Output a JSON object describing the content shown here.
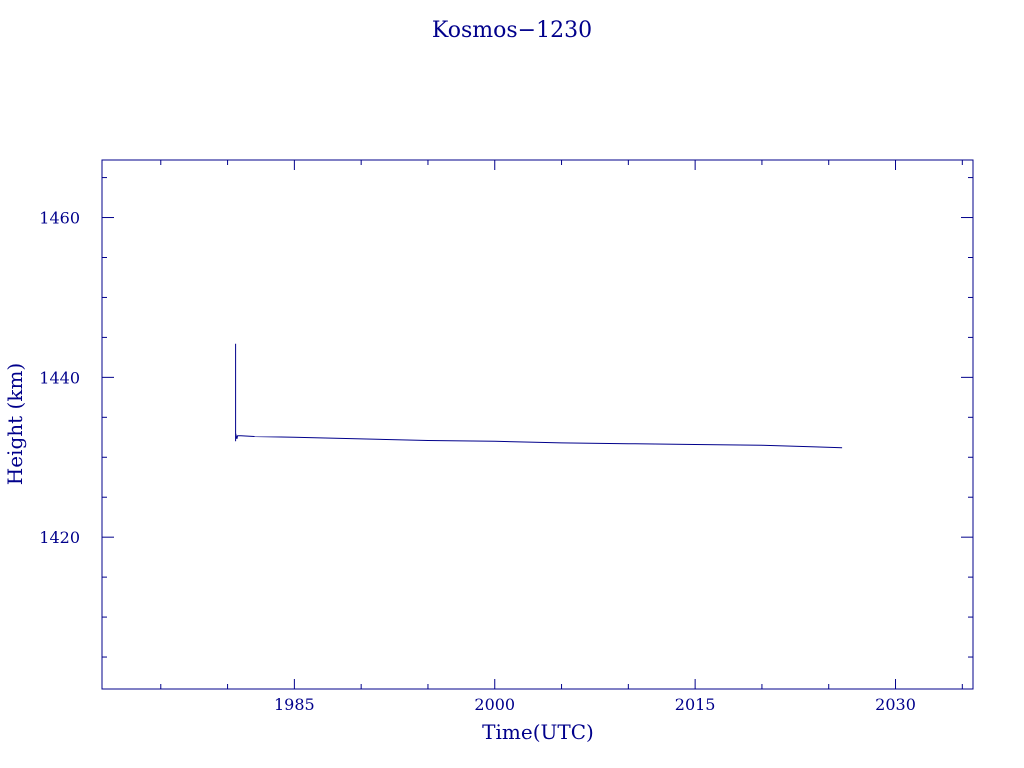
{
  "chart_data": {
    "type": "line",
    "title": "Kosmos−1230",
    "xlabel": "Time(UTC)",
    "ylabel": "Height (km)",
    "xlim": [
      1970.6,
      2035.8
    ],
    "ylim": [
      1401.0,
      1467.2
    ],
    "x_ticks": [
      1985,
      2000,
      2015,
      2030
    ],
    "y_ticks": [
      1420,
      1440,
      1460
    ],
    "grid": false,
    "color": "#00008b",
    "series": [
      {
        "x": [
          1980.6,
          1980.6,
          1980.6,
          1980.7,
          1980.75,
          1981,
          1982,
          1985,
          1990,
          1995,
          2000,
          2005,
          2010,
          2015,
          2020,
          2024,
          2026.0
        ],
        "y": [
          1432.0,
          1444.2,
          1433.0,
          1432.3,
          1432.7,
          1432.7,
          1432.6,
          1432.5,
          1432.3,
          1432.1,
          1432.0,
          1431.8,
          1431.7,
          1431.6,
          1431.5,
          1431.3,
          1431.2
        ]
      }
    ]
  }
}
